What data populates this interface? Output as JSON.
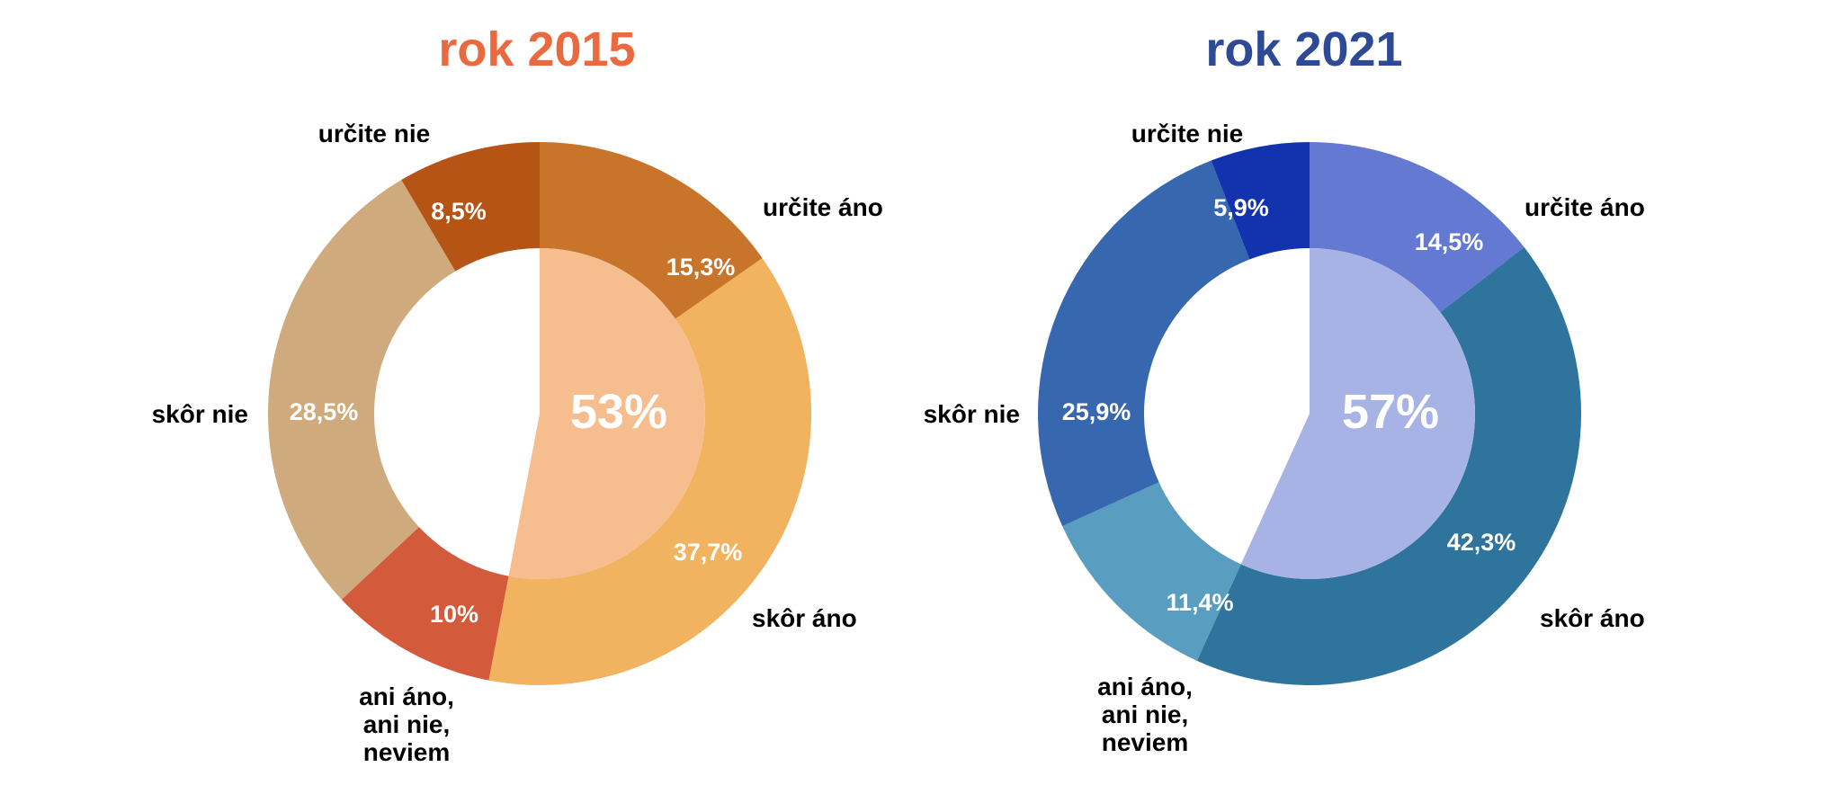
{
  "chart_data": [
    {
      "type": "pie",
      "title": "rok 2015",
      "title_color": "#EA6A3F",
      "center_label": "53%",
      "center_color": "#F6BE8F",
      "slices": [
        {
          "label": "určite áno",
          "value": 15.3,
          "value_label": "15,3%",
          "color": "#C8752B"
        },
        {
          "label": "skôr áno",
          "value": 37.7,
          "value_label": "37,7%",
          "color": "#F1B35F"
        },
        {
          "label": "ani áno, ani nie, neviem",
          "value": 10.0,
          "value_label": "10%",
          "color": "#D35A3A"
        },
        {
          "label": "skôr nie",
          "value": 28.5,
          "value_label": "28,5%",
          "color": "#CFAA7C"
        },
        {
          "label": "určite nie",
          "value": 8.5,
          "value_label": "8,5%",
          "color": "#B55415"
        }
      ]
    },
    {
      "type": "pie",
      "title": "rok 2021",
      "title_color": "#2E4A96",
      "center_label": "57%",
      "center_color": "#A6B3E4",
      "slices": [
        {
          "label": "určite áno",
          "value": 14.5,
          "value_label": "14,5%",
          "color": "#6479D1"
        },
        {
          "label": "skôr áno",
          "value": 42.3,
          "value_label": "42,3%",
          "color": "#2E749C"
        },
        {
          "label": "ani áno, ani nie, neviem",
          "value": 11.4,
          "value_label": "11,4%",
          "color": "#599DC1"
        },
        {
          "label": "skôr nie",
          "value": 25.9,
          "value_label": "25,9%",
          "color": "#3767AF"
        },
        {
          "label": "určite nie",
          "value": 5.9,
          "value_label": "5,9%",
          "color": "#1332AE"
        }
      ]
    }
  ],
  "category_label_lines": {
    "ani áno, ani nie, neviem": [
      "ani áno,",
      "ani nie,",
      "neviem"
    ]
  }
}
